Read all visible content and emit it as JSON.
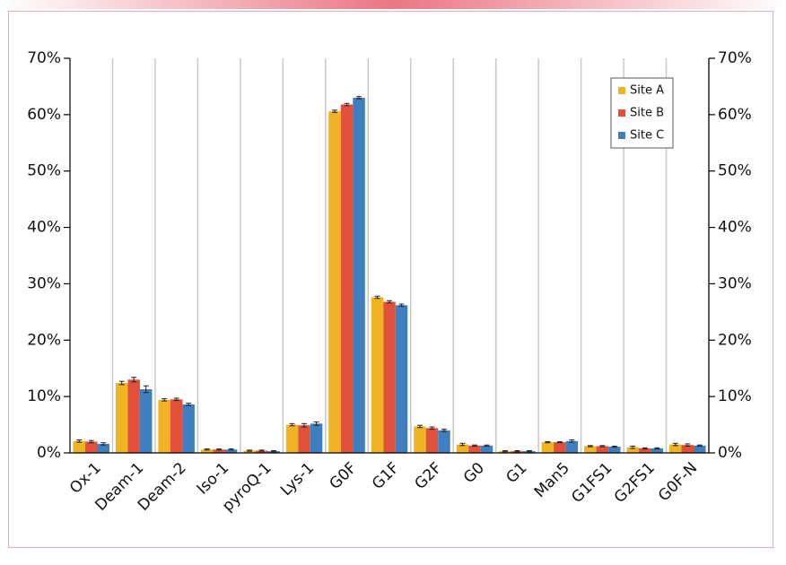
{
  "chart_data": {
    "type": "bar",
    "categories": [
      "Ox-1",
      "Deam-1",
      "Deam-2",
      "Iso-1",
      "pyroQ-1",
      "Lys-1",
      "G0F",
      "G1F",
      "G2F",
      "G0",
      "G1",
      "Man5",
      "G1FS1",
      "G2FS1",
      "G0F-N"
    ],
    "series": [
      {
        "name": "Site A",
        "color": "#f0b323",
        "values": [
          2.1,
          12.4,
          9.4,
          0.6,
          0.4,
          5.0,
          60.6,
          27.6,
          4.7,
          1.5,
          0.3,
          1.9,
          1.2,
          1.0,
          1.5
        ],
        "errors": [
          0.2,
          0.3,
          0.2,
          0.1,
          0.1,
          0.2,
          0.2,
          0.2,
          0.2,
          0.2,
          0.1,
          0.1,
          0.1,
          0.2,
          0.2
        ]
      },
      {
        "name": "Site B",
        "color": "#e0503a",
        "values": [
          2.0,
          13.0,
          9.5,
          0.6,
          0.4,
          4.9,
          61.8,
          26.8,
          4.4,
          1.3,
          0.3,
          1.9,
          1.2,
          0.8,
          1.4
        ],
        "errors": [
          0.2,
          0.4,
          0.2,
          0.1,
          0.1,
          0.3,
          0.2,
          0.2,
          0.2,
          0.1,
          0.1,
          0.1,
          0.1,
          0.1,
          0.2
        ]
      },
      {
        "name": "Site C",
        "color": "#3f7fbf",
        "values": [
          1.6,
          11.3,
          8.6,
          0.6,
          0.3,
          5.2,
          63.0,
          26.2,
          4.0,
          1.3,
          0.3,
          2.1,
          1.1,
          0.8,
          1.3
        ],
        "errors": [
          0.2,
          0.6,
          0.2,
          0.1,
          0.1,
          0.3,
          0.2,
          0.2,
          0.2,
          0.1,
          0.1,
          0.2,
          0.1,
          0.1,
          0.1
        ]
      }
    ],
    "ylim": [
      0,
      70
    ],
    "yticks": [
      {
        "value": 0,
        "label": "0%"
      },
      {
        "value": 10,
        "label": "10%"
      },
      {
        "value": 20,
        "label": "20%"
      },
      {
        "value": 30,
        "label": "30%"
      },
      {
        "value": 40,
        "label": "40%"
      },
      {
        "value": 50,
        "label": "50%"
      },
      {
        "value": 60,
        "label": "60%"
      },
      {
        "value": 70,
        "label": "70%"
      }
    ],
    "y2lim": [
      0,
      70
    ],
    "y2ticks": [
      {
        "value": 0,
        "label": "0%"
      },
      {
        "value": 10,
        "label": "10%"
      },
      {
        "value": 20,
        "label": "20%"
      },
      {
        "value": 30,
        "label": "30%"
      },
      {
        "value": 40,
        "label": "40%"
      },
      {
        "value": 50,
        "label": "50%"
      },
      {
        "value": 60,
        "label": "60%"
      },
      {
        "value": 70,
        "label": "70%"
      }
    ],
    "legend": "top-right"
  }
}
